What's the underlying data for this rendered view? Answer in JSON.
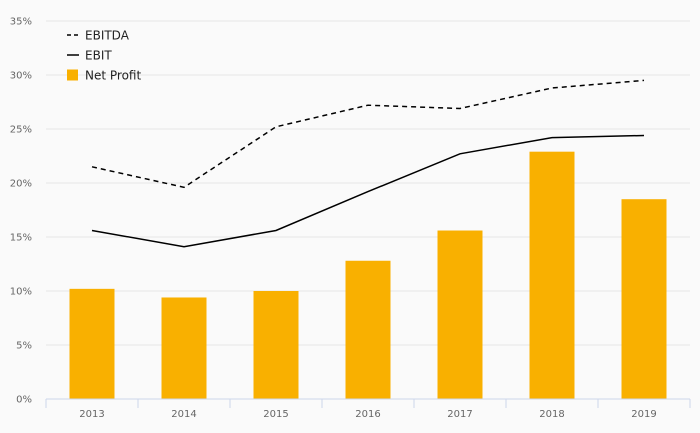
{
  "chart_data": {
    "type": "bar",
    "categories": [
      "2013",
      "2014",
      "2015",
      "2016",
      "2017",
      "2018",
      "2019"
    ],
    "y_ticks": [
      "0%",
      "5%",
      "10%",
      "15%",
      "20%",
      "25%",
      "30%",
      "35%"
    ],
    "ylim": [
      0,
      35
    ],
    "grid": true,
    "legend_position": "top-left",
    "series": [
      {
        "name": "EBITDA",
        "type": "line",
        "style": "dashed",
        "color": "#000000",
        "values": [
          21.5,
          19.6,
          25.2,
          27.2,
          26.9,
          28.8,
          29.5
        ]
      },
      {
        "name": "EBIT",
        "type": "line",
        "style": "solid",
        "color": "#000000",
        "values": [
          15.6,
          14.1,
          15.6,
          19.2,
          22.7,
          24.2,
          24.4
        ]
      },
      {
        "name": "Net Profit",
        "type": "bar",
        "color": "#f9b000",
        "values": [
          10.2,
          9.4,
          10.0,
          12.8,
          15.6,
          22.9,
          18.5
        ]
      }
    ]
  }
}
